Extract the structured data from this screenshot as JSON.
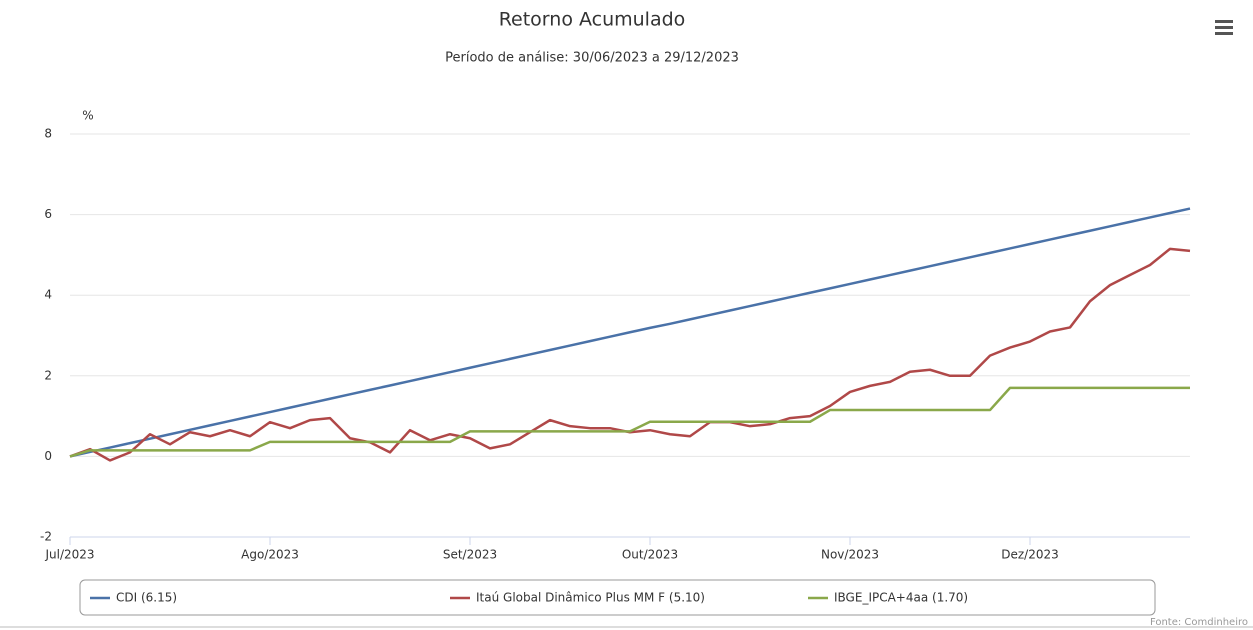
{
  "chart_data": {
    "type": "line",
    "title": "Retorno Acumulado",
    "subtitle": "Período de análise: 30/06/2023 a 29/12/2023",
    "y_label": "%",
    "source": "Fonte: Comdinheiro",
    "categories": [
      "Jul/2023",
      null,
      null,
      null,
      null,
      null,
      null,
      null,
      null,
      null,
      "Ago/2023",
      null,
      null,
      null,
      null,
      null,
      null,
      null,
      null,
      null,
      "Set/2023",
      null,
      null,
      null,
      null,
      null,
      null,
      null,
      null,
      "Out/2023",
      null,
      null,
      null,
      null,
      null,
      null,
      null,
      null,
      null,
      "Nov/2023",
      null,
      null,
      null,
      null,
      null,
      null,
      null,
      null,
      "Dez/2023",
      null,
      null,
      null,
      null,
      null,
      null,
      null,
      null
    ],
    "ylim": [
      -2,
      8
    ],
    "yticks": [
      -2,
      0,
      2,
      4,
      6,
      8
    ],
    "grid": true,
    "series": [
      {
        "name": "CDI (6.15)",
        "color": "#4a72a8",
        "values": [
          0,
          0.11,
          0.22,
          0.33,
          0.44,
          0.55,
          0.66,
          0.77,
          0.88,
          0.99,
          1.1,
          1.21,
          1.32,
          1.43,
          1.54,
          1.65,
          1.76,
          1.87,
          1.98,
          2.09,
          2.2,
          2.31,
          2.42,
          2.53,
          2.64,
          2.75,
          2.86,
          2.97,
          3.08,
          3.19,
          3.29,
          3.4,
          3.51,
          3.62,
          3.73,
          3.84,
          3.95,
          4.06,
          4.17,
          4.28,
          4.39,
          4.5,
          4.61,
          4.72,
          4.83,
          4.94,
          5.05,
          5.16,
          5.27,
          5.38,
          5.49,
          5.6,
          5.71,
          5.82,
          5.93,
          6.04,
          6.15
        ]
      },
      {
        "name": "Itaú Global Dinâmico Plus MM F (5.10)",
        "color": "#b04848",
        "values": [
          0,
          0.18,
          -0.1,
          0.1,
          0.55,
          0.3,
          0.6,
          0.5,
          0.65,
          0.5,
          0.85,
          0.7,
          0.9,
          0.95,
          0.45,
          0.35,
          0.1,
          0.65,
          0.4,
          0.55,
          0.45,
          0.2,
          0.3,
          0.6,
          0.9,
          0.75,
          0.7,
          0.7,
          0.6,
          0.65,
          0.55,
          0.5,
          0.85,
          0.85,
          0.75,
          0.8,
          0.95,
          1.0,
          1.25,
          1.6,
          1.75,
          1.85,
          2.1,
          2.15,
          2.0,
          2.0,
          2.5,
          2.7,
          2.85,
          3.1,
          3.2,
          3.85,
          4.25,
          4.5,
          4.75,
          5.15,
          5.1
        ]
      },
      {
        "name": "IBGE_IPCA+4aa (1.70)",
        "color": "#8aa84a",
        "values": [
          0,
          0.15,
          0.15,
          0.15,
          0.15,
          0.15,
          0.15,
          0.15,
          0.15,
          0.15,
          0.36,
          0.36,
          0.36,
          0.36,
          0.36,
          0.36,
          0.36,
          0.36,
          0.36,
          0.36,
          0.62,
          0.62,
          0.62,
          0.62,
          0.62,
          0.62,
          0.62,
          0.62,
          0.62,
          0.86,
          0.86,
          0.86,
          0.86,
          0.86,
          0.86,
          0.86,
          0.86,
          0.86,
          1.15,
          1.15,
          1.15,
          1.15,
          1.15,
          1.15,
          1.15,
          1.15,
          1.15,
          1.7,
          1.7,
          1.7,
          1.7,
          1.7,
          1.7,
          1.7,
          1.7,
          1.7,
          1.7
        ]
      }
    ]
  }
}
